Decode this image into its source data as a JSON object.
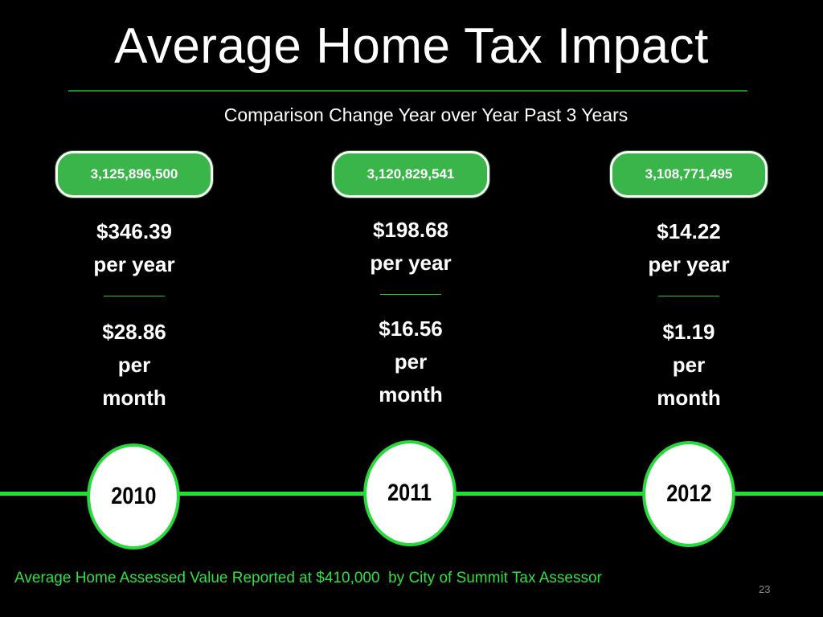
{
  "title": "Average Home Tax Impact",
  "subtitle": "Comparison Change Year over Year Past 3 Years",
  "colors": {
    "background": "#000000",
    "pill_green": "#3ab54a",
    "timeline_green": "#1fe033",
    "footnote_green": "#2ee040"
  },
  "years": [
    {
      "year": "2010",
      "assessed_total": "3,125,896,500",
      "per_year_amount": "$346.39",
      "per_year_label": "per year",
      "per_month_amount": "$28.86",
      "per_month_label_1": "per",
      "per_month_label_2": "month"
    },
    {
      "year": "2011",
      "assessed_total": "3,120,829,541",
      "per_year_amount": "$198.68",
      "per_year_label": "per year",
      "per_month_amount": "$16.56",
      "per_month_label_1": "per",
      "per_month_label_2": "month"
    },
    {
      "year": "2012",
      "assessed_total": "3,108,771,495",
      "per_year_amount": "$14.22",
      "per_year_label": "per year",
      "per_month_amount": "$1.19",
      "per_month_label_1": "per",
      "per_month_label_2": "month"
    }
  ],
  "footnote": "Average Home Assessed Value Reported at $410,000  by City of Summit Tax Assessor",
  "slide_number": "23"
}
